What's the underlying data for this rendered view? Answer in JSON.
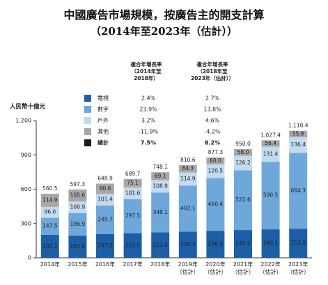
{
  "chart_data": {
    "type": "stacked-bar",
    "title": "中國廣告市場規模，按廣告主的開支計算",
    "subtitle": "（2014年至2023年（估計））",
    "ylabel": "人民幣十億元",
    "categories": [
      "2014年",
      "2015年",
      "2016年",
      "2017年",
      "2018年",
      "2019年\n（估計）",
      "2020年\n（估計）",
      "2021年\n（估計）",
      "2022年\n（估計）",
      "2023年\n（估計）"
    ],
    "series": [
      {
        "name": "電視",
        "color": "#1d5fa6",
        "label_color": "#ffffff",
        "values": [
          202.1,
          193.9,
          207.2,
          215.5,
          222.0,
          229.3,
          236.4,
          243.2,
          249.1,
          253.9
        ],
        "value_labels": [
          "202.1",
          "193.9",
          "207.2",
          "215.5",
          "222.0",
          "229.3",
          "236.4",
          "243.2",
          "249.1",
          "253.9"
        ]
      },
      {
        "name": "數字",
        "color": "#6ea7da",
        "label_color": "#1f2f45",
        "values": [
          147.5,
          196.9,
          249.7,
          297.5,
          348.1,
          402.1,
          460.4,
          522.6,
          590.5,
          664.3
        ],
        "value_labels": [
          "147.5",
          "196.9",
          "249.7",
          "297.5",
          "348.1",
          "402.1",
          "460.4",
          "522.6",
          "590.5",
          "664.3"
        ]
      },
      {
        "name": "戶外",
        "color": "#c3dbf0",
        "label_color": "#1f2f45",
        "values": [
          96.0,
          100.9,
          101.4,
          101.6,
          108.9,
          114.9,
          120.5,
          126.2,
          131.4,
          136.4
        ],
        "value_labels": [
          "96.0",
          "100.9",
          "101.4",
          "101.6",
          "108.9",
          "114.9",
          "120.5",
          "126.2",
          "131.4",
          "136.4"
        ]
      },
      {
        "name": "其他",
        "color": "#a7a7a7",
        "label_color": "#1f1f1f",
        "values": [
          114.9,
          105.6,
          90.6,
          75.1,
          69.1,
          64.3,
          60.0,
          58.0,
          56.4,
          55.8
        ],
        "value_labels": [
          "114.9",
          "105.6",
          "90.6",
          "75.1",
          "69.1",
          "64.3",
          "60.0",
          "58.0",
          "56.4",
          "55.8"
        ]
      }
    ],
    "totals": {
      "values": [
        560.5,
        597.3,
        648.9,
        689.7,
        748.1,
        810.6,
        877.3,
        950.0,
        1027.4,
        1110.4
      ],
      "value_labels": [
        "560.5",
        "597.3",
        "648.9",
        "689.7",
        "748.1",
        "810.6",
        "877.3",
        "950.0",
        "1,027.4",
        "1,110.4"
      ]
    },
    "ylim": [
      0,
      1200
    ],
    "yticks": [
      0,
      300,
      600,
      900,
      {
        "value": 1200,
        "label": "1,200"
      }
    ],
    "cagr_table": {
      "headers": [
        "複合年增長率\n（2014年至\n2018年）",
        "複合年增長率\n（2018年至\n2023年（估計））"
      ],
      "rows": [
        [
          "2.4%",
          "2.7%"
        ],
        [
          "23.9%",
          "13.8%"
        ],
        [
          "3.2%",
          "4.6%"
        ],
        [
          "-11.9%",
          "-4.2%"
        ]
      ],
      "total_label": "總計",
      "total_row": [
        "7.5%",
        "8.2%"
      ]
    }
  }
}
